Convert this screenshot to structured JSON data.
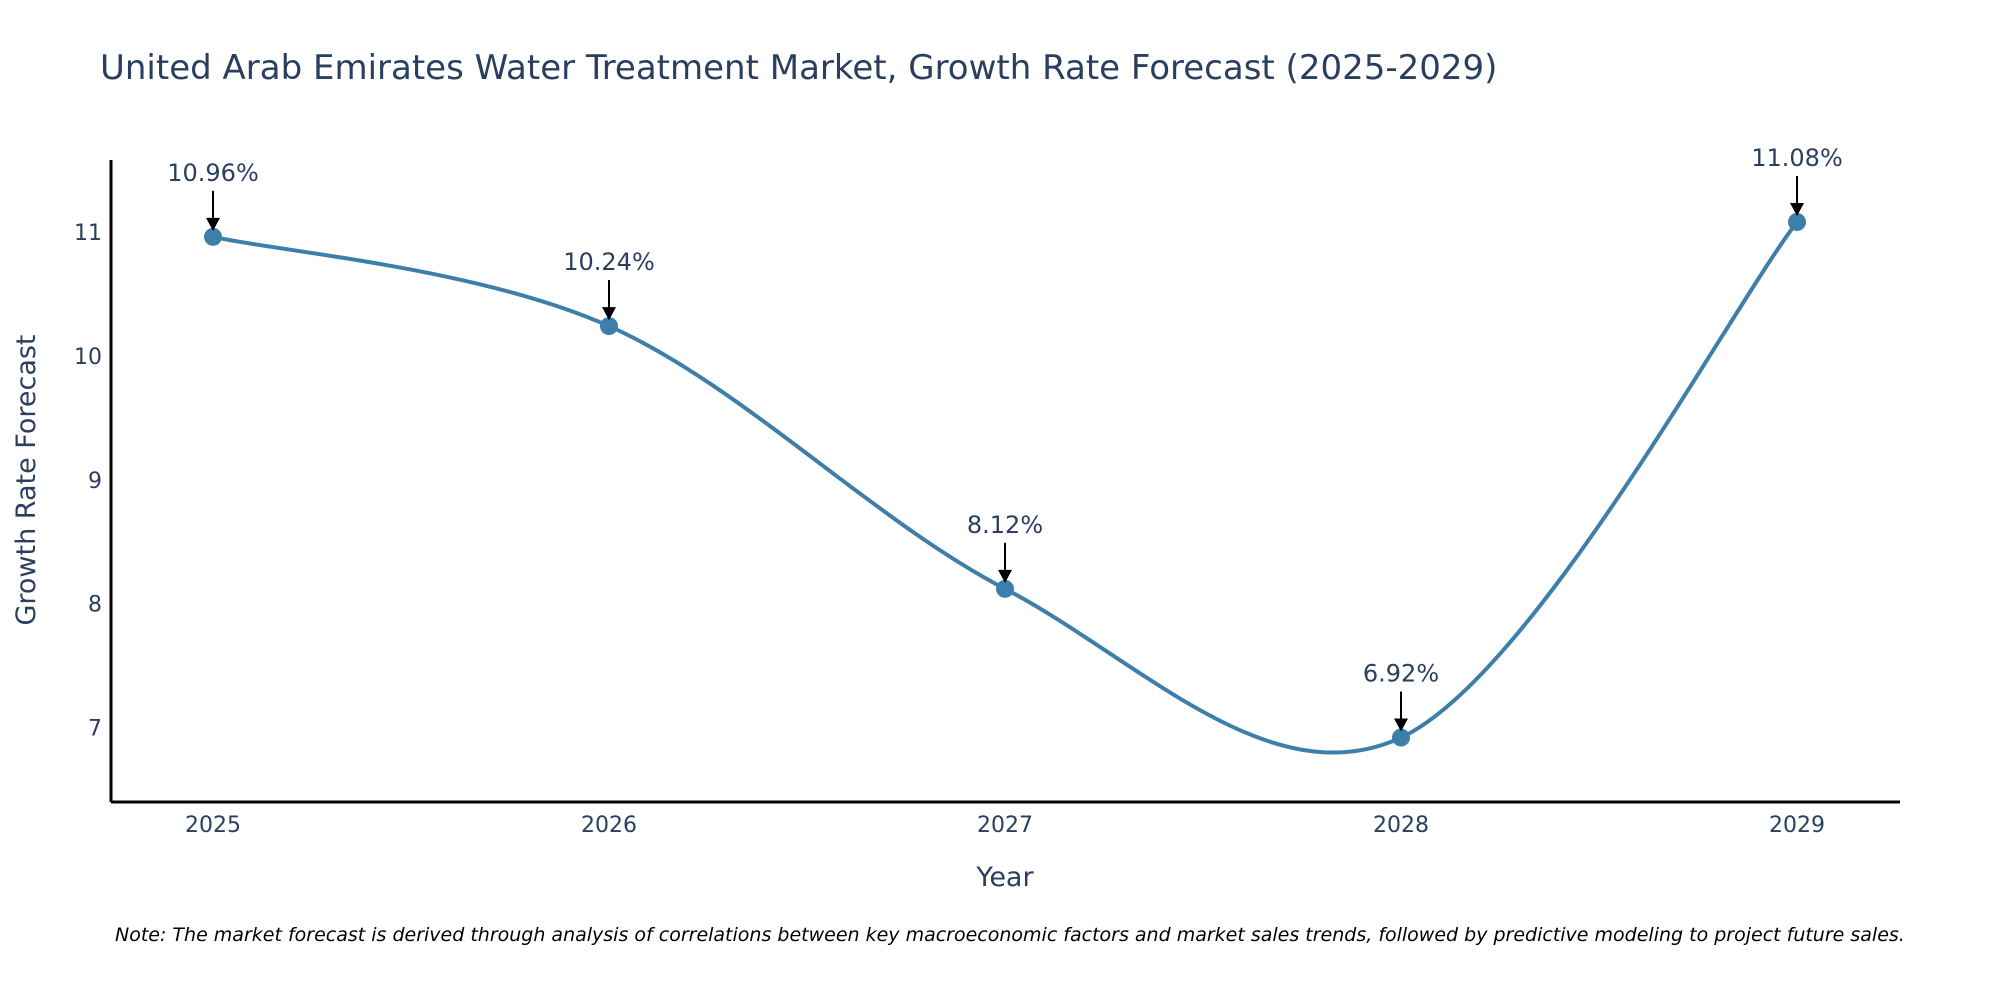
{
  "chart_data": {
    "type": "line",
    "title": "United Arab Emirates Water Treatment Market, Growth Rate Forecast (2025-2029)",
    "xlabel": "Year",
    "ylabel": "Growth Rate Forecast",
    "categories": [
      "2025",
      "2026",
      "2027",
      "2028",
      "2029"
    ],
    "values": [
      10.96,
      10.24,
      8.12,
      6.92,
      11.08
    ],
    "data_labels": [
      "10.96%",
      "10.24%",
      "8.12%",
      "6.92%",
      "11.08%"
    ],
    "y_ticks": [
      7,
      8,
      9,
      10,
      11
    ],
    "y_tick_labels": [
      "7",
      "8",
      "9",
      "10",
      "11"
    ],
    "ylim": [
      6.4,
      11.58
    ],
    "line_shape": "spline",
    "grid": false,
    "legend": "none",
    "colors": {
      "line": "#3d7eab",
      "marker": "#3d7eab",
      "text": "#2a3f5f",
      "axis": "#000000"
    },
    "note": "Note: The market forecast is derived through analysis of correlations between key macroeconomic factors and market sales trends, followed by predictive modeling to project future sales."
  }
}
